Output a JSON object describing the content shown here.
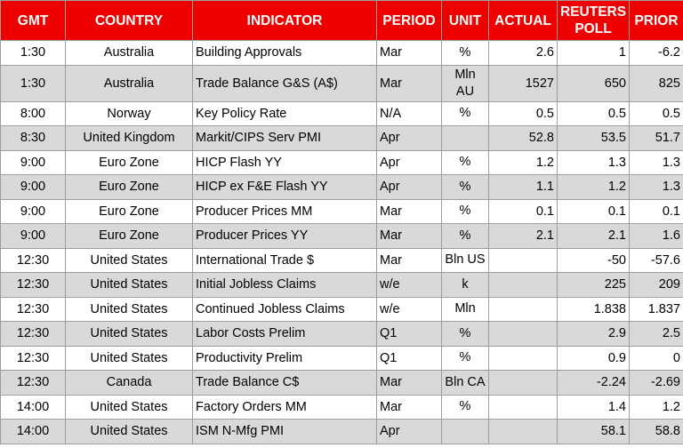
{
  "headers": {
    "gmt": "GMT",
    "country": "COUNTRY",
    "indicator": "INDICATOR",
    "period": "PERIOD",
    "unit": "UNIT",
    "actual": "ACTUAL",
    "poll": "REUTERS POLL",
    "prior": "PRIOR"
  },
  "colors": {
    "header_bg": "#ee0000",
    "header_text": "#ffffff",
    "row_alt_bg": "#d9d9d9",
    "border": "#9e9e9e"
  },
  "rows": [
    {
      "gmt": "1:30",
      "country": "Australia",
      "indicator": "Building Approvals",
      "period": "Mar",
      "unit": "%",
      "actual": "2.6",
      "poll": "1",
      "prior": "-6.2"
    },
    {
      "gmt": "1:30",
      "country": "Australia",
      "indicator": "Trade Balance G&S (A$)",
      "period": "Mar",
      "unit": "Mln AU",
      "actual": "1527",
      "poll": "650",
      "prior": "825"
    },
    {
      "gmt": "8:00",
      "country": "Norway",
      "indicator": "Key Policy Rate",
      "period": "N/A",
      "unit": "%",
      "actual": "0.5",
      "poll": "0.5",
      "prior": "0.5"
    },
    {
      "gmt": "8:30",
      "country": "United Kingdom",
      "indicator": "Markit/CIPS Serv PMI",
      "period": "Apr",
      "unit": "",
      "actual": "52.8",
      "poll": "53.5",
      "prior": "51.7"
    },
    {
      "gmt": "9:00",
      "country": "Euro Zone",
      "indicator": "HICP Flash YY",
      "period": "Apr",
      "unit": "%",
      "actual": "1.2",
      "poll": "1.3",
      "prior": "1.3"
    },
    {
      "gmt": "9:00",
      "country": "Euro Zone",
      "indicator": "HICP ex F&E Flash YY",
      "period": "Apr",
      "unit": "%",
      "actual": "1.1",
      "poll": "1.2",
      "prior": "1.3"
    },
    {
      "gmt": "9:00",
      "country": "Euro Zone",
      "indicator": "Producer Prices MM",
      "period": "Mar",
      "unit": "%",
      "actual": "0.1",
      "poll": "0.1",
      "prior": "0.1"
    },
    {
      "gmt": "9:00",
      "country": "Euro Zone",
      "indicator": "Producer Prices YY",
      "period": "Mar",
      "unit": "%",
      "actual": "2.1",
      "poll": "2.1",
      "prior": "1.6"
    },
    {
      "gmt": "12:30",
      "country": "United States",
      "indicator": "International Trade $",
      "period": "Mar",
      "unit": "Bln US",
      "actual": "",
      "poll": "-50",
      "prior": "-57.6"
    },
    {
      "gmt": "12:30",
      "country": "United States",
      "indicator": "Initial Jobless Claims",
      "period": "w/e",
      "unit": "k",
      "actual": "",
      "poll": "225",
      "prior": "209"
    },
    {
      "gmt": "12:30",
      "country": "United States",
      "indicator": "Continued Jobless Claims",
      "period": "w/e",
      "unit": "Mln",
      "actual": "",
      "poll": "1.838",
      "prior": "1.837"
    },
    {
      "gmt": "12:30",
      "country": "United States",
      "indicator": "Labor Costs Prelim",
      "period": "Q1",
      "unit": "%",
      "actual": "",
      "poll": "2.9",
      "prior": "2.5"
    },
    {
      "gmt": "12:30",
      "country": "United States",
      "indicator": "Productivity Prelim",
      "period": "Q1",
      "unit": "%",
      "actual": "",
      "poll": "0.9",
      "prior": "0"
    },
    {
      "gmt": "12:30",
      "country": "Canada",
      "indicator": "Trade Balance C$",
      "period": "Mar",
      "unit": "Bln CA",
      "actual": "",
      "poll": "-2.24",
      "prior": "-2.69"
    },
    {
      "gmt": "14:00",
      "country": "United States",
      "indicator": "Factory Orders MM",
      "period": "Mar",
      "unit": "%",
      "actual": "",
      "poll": "1.4",
      "prior": "1.2"
    },
    {
      "gmt": "14:00",
      "country": "United States",
      "indicator": "ISM N-Mfg PMI",
      "period": "Apr",
      "unit": "",
      "actual": "",
      "poll": "58.1",
      "prior": "58.8"
    }
  ]
}
